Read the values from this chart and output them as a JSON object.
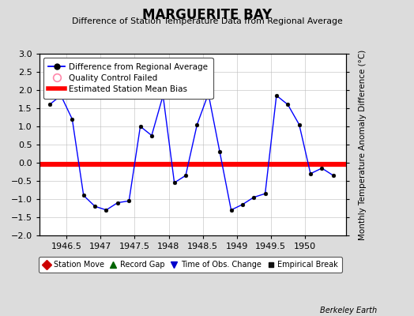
{
  "title": "MARGUERITE BAY",
  "subtitle": "Difference of Station Temperature Data from Regional Average",
  "ylabel": "Monthly Temperature Anomaly Difference (°C)",
  "xlabel_ticks": [
    1946.5,
    1947,
    1947.5,
    1948,
    1948.5,
    1949,
    1949.5,
    1950
  ],
  "xlabel_labels": [
    "1946.5",
    "1947",
    "1947.5",
    "1948",
    "1948.5",
    "1949",
    "1949.5",
    "1950"
  ],
  "ylim": [
    -2,
    3
  ],
  "yticks": [
    -2,
    -1.5,
    -1,
    -0.5,
    0,
    0.5,
    1,
    1.5,
    2,
    2.5,
    3
  ],
  "xlim": [
    1946.1,
    1950.6
  ],
  "bias_value": -0.04,
  "line_color": "#0000FF",
  "bias_color": "#FF0000",
  "bg_color": "#DCDCDC",
  "plot_bg": "#FFFFFF",
  "credit": "Berkeley Earth",
  "x_data": [
    1946.25,
    1946.417,
    1946.583,
    1946.75,
    1946.917,
    1947.083,
    1947.25,
    1947.417,
    1947.583,
    1947.75,
    1947.917,
    1948.083,
    1948.25,
    1948.417,
    1948.583,
    1948.75,
    1948.917,
    1949.083,
    1949.25,
    1949.417,
    1949.583,
    1949.75,
    1949.917,
    1950.083,
    1950.25,
    1950.417
  ],
  "y_data": [
    1.6,
    1.85,
    1.2,
    -0.9,
    -1.2,
    -1.3,
    -1.1,
    -1.05,
    1.0,
    0.75,
    1.85,
    -0.55,
    -0.35,
    1.05,
    1.9,
    0.3,
    -1.3,
    -1.15,
    -0.95,
    -0.85,
    1.85,
    1.6,
    1.05,
    -0.3,
    -0.15,
    -0.35
  ],
  "legend_main": [
    {
      "label": "Difference from Regional Average"
    },
    {
      "label": "Quality Control Failed"
    },
    {
      "label": "Estimated Station Mean Bias"
    }
  ],
  "legend_bottom": [
    {
      "label": "Station Move",
      "marker": "D",
      "color": "#CC0000"
    },
    {
      "label": "Record Gap",
      "marker": "^",
      "color": "#006400"
    },
    {
      "label": "Time of Obs. Change",
      "marker": "v",
      "color": "#0000CC"
    },
    {
      "label": "Empirical Break",
      "marker": "s",
      "color": "#111111"
    }
  ]
}
